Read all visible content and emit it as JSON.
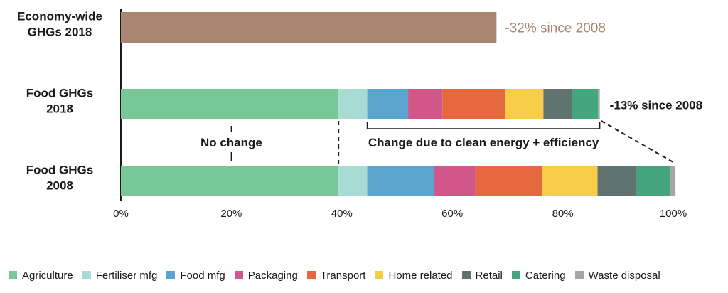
{
  "chart_data": {
    "type": "bar",
    "orientation": "horizontal",
    "stacked": true,
    "categories": [
      "Economy-wide GHGs 2018",
      "Food GHGs 2018",
      "Food GHGs 2008"
    ],
    "category_lines": [
      [
        "Economy-wide",
        "GHGs 2018"
      ],
      [
        "Food GHGs",
        "2018"
      ],
      [
        "Food GHGs",
        "2008"
      ]
    ],
    "xlim": [
      0,
      100
    ],
    "x_ticks": [
      0,
      20,
      40,
      60,
      80,
      100
    ],
    "x_tick_labels": [
      "0%",
      "20%",
      "40%",
      "60%",
      "80%",
      "100%"
    ],
    "economy_bar": {
      "value": 68,
      "color": "#a98673",
      "label": "-32% since 2008",
      "label_color": "#a98673"
    },
    "series": [
      {
        "name": "Agriculture",
        "color": "#78c796",
        "values": [
          null,
          39.4,
          39.4
        ]
      },
      {
        "name": "Fertiliser mfg",
        "color": "#a8dbd3",
        "values": [
          null,
          5.2,
          5.2
        ]
      },
      {
        "name": "Food mfg",
        "color": "#5aa5cf",
        "values": [
          null,
          7.4,
          12.1
        ]
      },
      {
        "name": "Packaging",
        "color": "#d1578a",
        "values": [
          null,
          6.2,
          7.5
        ]
      },
      {
        "name": "Transport",
        "color": "#e5683e",
        "values": [
          null,
          11.3,
          12.1
        ]
      },
      {
        "name": "Home related",
        "color": "#f7cd48",
        "values": [
          null,
          7.0,
          10.0
        ]
      },
      {
        "name": "Retail",
        "color": "#5f7371",
        "values": [
          null,
          5.2,
          7.1
        ]
      },
      {
        "name": "Catering",
        "color": "#45a57f",
        "values": [
          null,
          4.7,
          6.0
        ]
      },
      {
        "name": "Waste disposal",
        "color": "#a6a6a6",
        "values": [
          null,
          0.3,
          1.0
        ]
      }
    ],
    "food_2018_label": "-13% since 2008",
    "annotations": {
      "no_change": "No change",
      "clean_energy": "Change due to clean energy + efficiency"
    },
    "legend_position": "bottom"
  }
}
